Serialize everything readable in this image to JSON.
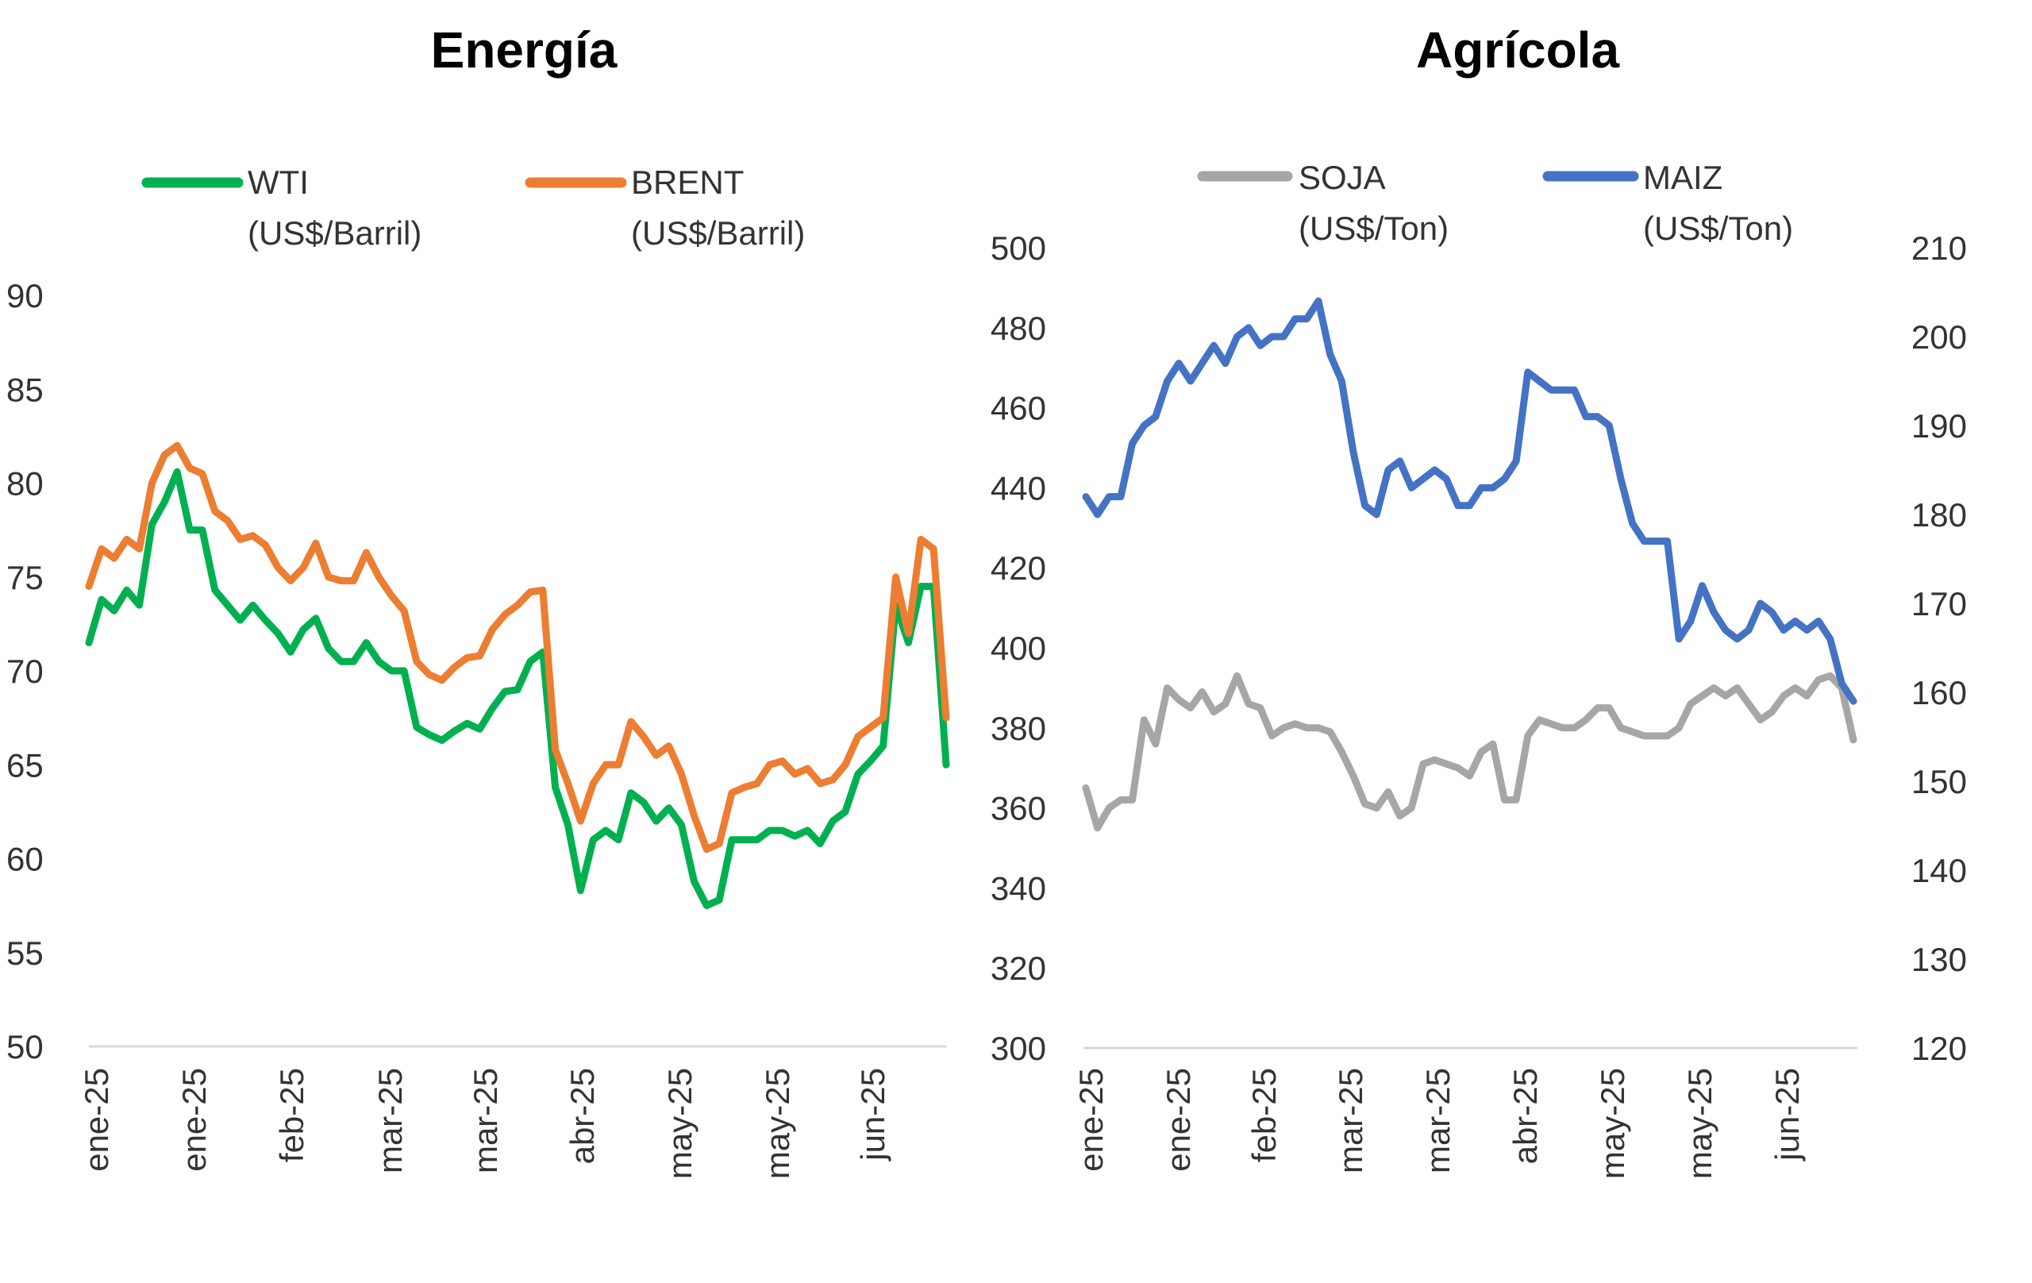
{
  "chart_data": [
    {
      "type": "line",
      "title": "Energía",
      "ylim": [
        50,
        90
      ],
      "yticks": [
        "90",
        "85",
        "80",
        "75",
        "70",
        "65",
        "60",
        "55",
        "50"
      ],
      "xticks": [
        "ene-25",
        "ene-25",
        "feb-25",
        "mar-25",
        "mar-25",
        "abr-25",
        "may-25",
        "may-25",
        "jun-25"
      ],
      "grid": false,
      "legend_position": "top",
      "series": [
        {
          "name": "WTI",
          "unit": "(US$/Barril)",
          "color": "#00b050",
          "values": [
            71.5,
            73.8,
            73.2,
            74.3,
            73.5,
            77.8,
            79.0,
            80.6,
            77.5,
            77.5,
            74.3,
            73.5,
            72.7,
            73.5,
            72.7,
            72.0,
            71.0,
            72.2,
            72.8,
            71.2,
            70.5,
            70.5,
            71.5,
            70.5,
            70.0,
            70.0,
            67.0,
            66.6,
            66.3,
            66.8,
            67.2,
            66.9,
            68.0,
            68.9,
            69.0,
            70.5,
            71.0,
            63.8,
            61.8,
            58.3,
            61.0,
            61.5,
            61.0,
            63.5,
            63.0,
            62.0,
            62.7,
            61.8,
            58.8,
            57.5,
            57.8,
            61.0,
            61.0,
            61.0,
            61.5,
            61.5,
            61.2,
            61.5,
            60.8,
            62.0,
            62.5,
            64.5,
            65.2,
            66.0,
            73.5,
            71.5,
            74.5,
            74.5,
            65.0
          ]
        },
        {
          "name": "BRENT",
          "unit": "(US$/Barril)",
          "color": "#ed7d31",
          "values": [
            74.5,
            76.5,
            76.0,
            77.0,
            76.5,
            80.0,
            81.5,
            82.0,
            80.8,
            80.5,
            78.5,
            78.0,
            77.0,
            77.2,
            76.7,
            75.5,
            74.8,
            75.5,
            76.8,
            75.0,
            74.8,
            74.8,
            76.3,
            75.0,
            74.0,
            73.2,
            70.5,
            69.8,
            69.5,
            70.2,
            70.7,
            70.8,
            72.2,
            73.0,
            73.5,
            74.2,
            74.3,
            65.8,
            64.0,
            62.0,
            64.0,
            65.0,
            65.0,
            67.3,
            66.5,
            65.5,
            66.0,
            64.5,
            62.3,
            60.5,
            60.8,
            63.5,
            63.8,
            64.0,
            65.0,
            65.2,
            64.5,
            64.8,
            64.0,
            64.2,
            65.0,
            66.5,
            67.0,
            67.5,
            75.0,
            72.0,
            77.0,
            76.5,
            67.5
          ]
        }
      ]
    },
    {
      "type": "line",
      "title": "Agrícola",
      "ylim_left": [
        300,
        500
      ],
      "ylim_right": [
        120,
        210
      ],
      "yticks_left": [
        "500",
        "480",
        "460",
        "440",
        "420",
        "400",
        "380",
        "360",
        "340",
        "320",
        "300"
      ],
      "yticks_right": [
        "210",
        "200",
        "190",
        "180",
        "170",
        "160",
        "150",
        "140",
        "130",
        "120"
      ],
      "xticks": [
        "ene-25",
        "ene-25",
        "feb-25",
        "mar-25",
        "mar-25",
        "abr-25",
        "may-25",
        "may-25",
        "jun-25"
      ],
      "grid": false,
      "legend_position": "top",
      "series": [
        {
          "name": "SOJA",
          "unit": "(US$/Ton)",
          "color": "#a6a6a6",
          "axis": "left",
          "values": [
            365,
            355,
            360,
            362,
            362,
            382,
            376,
            390,
            387,
            385,
            389,
            384,
            386,
            393,
            386,
            385,
            378,
            380,
            381,
            380,
            380,
            379,
            374,
            368,
            361,
            360,
            364,
            358,
            360,
            371,
            372,
            371,
            370,
            368,
            374,
            376,
            362,
            362,
            378,
            382,
            381,
            380,
            380,
            382,
            385,
            385,
            380,
            379,
            378,
            378,
            378,
            380,
            386,
            388,
            390,
            388,
            390,
            386,
            382,
            384,
            388,
            390,
            388,
            392,
            393,
            390,
            377
          ]
        },
        {
          "name": "MAIZ",
          "unit": "(US$/Ton)",
          "color": "#4472c4",
          "axis": "right",
          "values": [
            182,
            180,
            182,
            182,
            188,
            190,
            191,
            195,
            197,
            195,
            197,
            199,
            197,
            200,
            201,
            199,
            200,
            200,
            202,
            202,
            204,
            198,
            195,
            187,
            181,
            180,
            185,
            186,
            183,
            184,
            185,
            184,
            181,
            181,
            183,
            183,
            184,
            186,
            196,
            195,
            194,
            194,
            194,
            191,
            191,
            190,
            184,
            179,
            177,
            177,
            177,
            166,
            168,
            172,
            169,
            167,
            166,
            167,
            170,
            169,
            167,
            168,
            167,
            168,
            166,
            161,
            159
          ]
        }
      ]
    }
  ]
}
